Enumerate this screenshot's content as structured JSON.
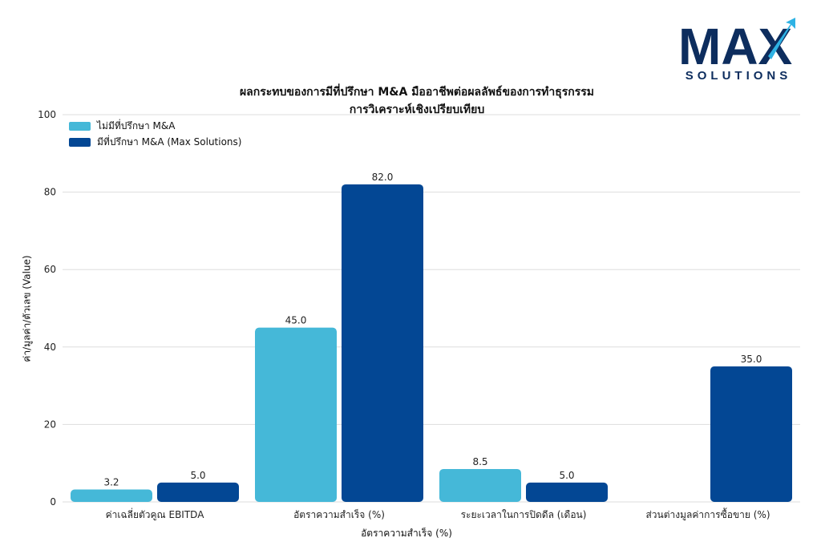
{
  "logo": {
    "mark": "MAX",
    "sub": "SOLUTIONS"
  },
  "title_line1": "ผลกระทบของการมีที่ปรึกษา M&A มืออาชีพต่อผลลัพธ์ของการทำธุรกรรม",
  "title_line2": "การวิเคราะห์เชิงเปรียบเทียบ",
  "colors": {
    "series1": "#45b8d8",
    "series2": "#034794",
    "grid": "#dddddd",
    "logo": "#0d2d5e",
    "logo_arrow": "#2eb2e4"
  },
  "chart_data": {
    "type": "bar",
    "title": "ผลกระทบของการมีที่ปรึกษา M&A มืออาชีพต่อผลลัพธ์ของการทำธุรกรรม การวิเคราะห์เชิงเปรียบเทียบ",
    "categories": [
      "ค่าเฉลี่ยตัวคูณ EBITDA",
      "อัตราความสำเร็จ (%)",
      "ระยะเวลาในการปิดดีล (เดือน)",
      "ส่วนต่างมูลค่าการซื้อขาย (%)"
    ],
    "series": [
      {
        "name": "ไม่มีที่ปรึกษา M&A",
        "values": [
          3.2,
          45.0,
          8.5,
          null
        ],
        "labels": [
          "3.2",
          "45.0",
          "8.5",
          ""
        ]
      },
      {
        "name": "มีที่ปรึกษา M&A (Max Solutions)",
        "values": [
          5.0,
          82.0,
          5.0,
          35.0
        ],
        "labels": [
          "5.0",
          "82.0",
          "5.0",
          "35.0"
        ]
      }
    ],
    "xlabel": "อัตราความสำเร็จ (%)",
    "ylabel": "ค่า/มูลค่า/ตัวเลข (Value)",
    "ylim": [
      0,
      100
    ],
    "yticks": [
      0,
      20,
      40,
      60,
      80,
      100
    ],
    "grid": true,
    "legend": "top-left"
  }
}
